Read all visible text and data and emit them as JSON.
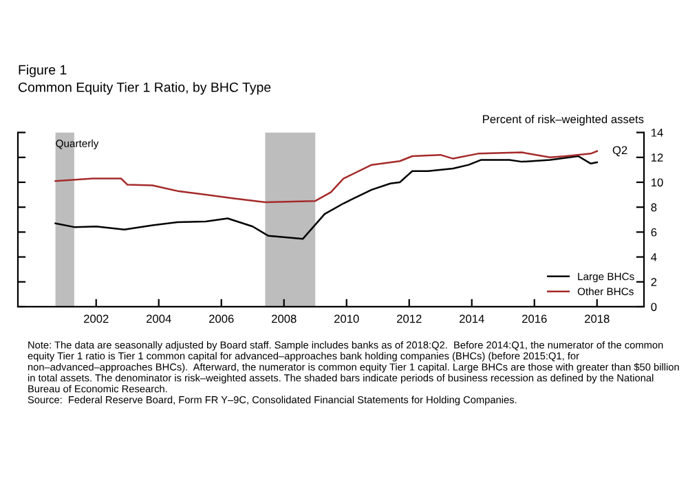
{
  "chart_data": {
    "type": "line",
    "title": "Figure 1",
    "subtitle": "Common Equity Tier 1 Ratio, by BHC Type",
    "ylabel": "Percent of risk–weighted assets",
    "annotations": [
      "Quarterly",
      {
        "text": "Q2",
        "x": 2018.5,
        "y": 12.5
      },
      "Note: The data are seasonally adjusted by Board staff. Sample includes banks as of 2018:Q2.  Before 2014:Q1, the numerator of the common equity Tier 1 ratio is Tier 1 common capital for advanced–approaches bank holding companies (BHCs) (before 2015:Q1, for non–advanced–approaches BHCs).  Afterward, the numerator is common equity Tier 1 capital. Large BHCs are those with greater than $50 billion in total assets. The denominator is risk–weighted assets. The shaded bars indicate periods of business recession as defined by the National Bureau of Economic Research.",
      "Source:  Federal Reserve Board, Form FR Y–9C, Consolidated Financial Statements for Holding Companies."
    ],
    "series": [
      {
        "name": "Large BHCs",
        "color": "#000000",
        "x": [
          2001.2,
          2001.8,
          2002.5,
          2003.4,
          2004.3,
          2005.1,
          2006.0,
          2006.7,
          2007.5,
          2008.0,
          2009.1,
          2009.8,
          2010.4,
          2011.3,
          2011.9,
          2012.2,
          2012.6,
          2013.1,
          2013.9,
          2014.4,
          2014.8,
          2015.7,
          2016.1,
          2017.0,
          2017.9,
          2018.3,
          2018.5
        ],
        "values": [
          6.7,
          6.4,
          6.45,
          6.2,
          6.55,
          6.8,
          6.85,
          7.1,
          6.45,
          5.7,
          5.45,
          7.45,
          8.3,
          9.4,
          9.9,
          10.0,
          10.9,
          10.9,
          11.1,
          11.4,
          11.8,
          11.8,
          11.65,
          11.8,
          12.1,
          11.5,
          11.6
        ]
      },
      {
        "name": "Other BHCs",
        "color": "#a52a2a",
        "x": [
          2001.2,
          2002.4,
          2003.3,
          2003.5,
          2004.3,
          2005.1,
          2006.0,
          2006.9,
          2007.9,
          2009.5,
          2010.0,
          2010.4,
          2011.3,
          2012.2,
          2012.6,
          2013.5,
          2013.9,
          2014.7,
          2016.1,
          2017.0,
          2017.5,
          2018.3,
          2018.5
        ],
        "values": [
          10.1,
          10.3,
          10.3,
          9.8,
          9.75,
          9.3,
          9.0,
          8.7,
          8.4,
          8.5,
          9.2,
          10.3,
          11.4,
          11.7,
          12.1,
          12.2,
          11.9,
          12.3,
          12.4,
          12.0,
          12.1,
          12.3,
          12.5
        ]
      }
    ],
    "xlim": [
      2000,
      2020
    ],
    "ylim": [
      0,
      14
    ],
    "yticks": [
      0,
      2,
      4,
      6,
      8,
      10,
      12,
      14
    ],
    "xticks": [
      {
        "value": 2002.5,
        "label": "2002"
      },
      {
        "value": 2004.5,
        "label": "2004"
      },
      {
        "value": 2006.5,
        "label": "2006"
      },
      {
        "value": 2008.5,
        "label": "2008"
      },
      {
        "value": 2010.5,
        "label": "2010"
      },
      {
        "value": 2012.5,
        "label": "2012"
      },
      {
        "value": 2014.5,
        "label": "2014"
      },
      {
        "value": 2016.5,
        "label": "2016"
      },
      {
        "value": 2018.5,
        "label": "2018"
      }
    ],
    "bands": [
      {
        "axis": "x",
        "from": 2001.2,
        "to": 2001.8,
        "color": "#bdbdbd"
      },
      {
        "axis": "x",
        "from": 2007.9,
        "to": 2009.5,
        "color": "#bdbdbd"
      }
    ],
    "legend": "bottom right",
    "grid": false
  }
}
